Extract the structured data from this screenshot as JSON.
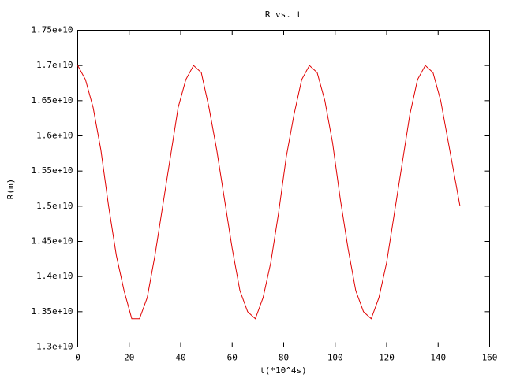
{
  "chart_data": {
    "type": "line",
    "title": "R vs. t",
    "x_label": "t(*10^4s)",
    "y_label": "R(m)",
    "x": [
      0,
      3,
      6,
      9,
      12,
      15,
      18,
      21,
      24,
      27,
      30,
      33,
      36,
      39,
      42,
      45,
      48,
      51,
      54,
      57,
      60,
      63,
      66,
      69,
      72,
      75,
      78,
      81,
      84,
      87,
      90,
      93,
      96,
      99,
      102,
      105,
      108,
      111,
      114,
      117,
      120,
      123,
      126,
      129,
      132,
      135,
      138,
      141,
      144,
      148.5
    ],
    "series": [
      {
        "name": "R",
        "color": "#e00000",
        "values": [
          17000000000.0,
          16800000000.0,
          16400000000.0,
          15800000000.0,
          15000000000.0,
          14300000000.0,
          13800000000.0,
          13400000000.0,
          13400000000.0,
          13700000000.0,
          14300000000.0,
          15000000000.0,
          15700000000.0,
          16400000000.0,
          16800000000.0,
          17000000000.0,
          16900000000.0,
          16400000000.0,
          15800000000.0,
          15100000000.0,
          14400000000.0,
          13800000000.0,
          13500000000.0,
          13400000000.0,
          13700000000.0,
          14200000000.0,
          14900000000.0,
          15700000000.0,
          16300000000.0,
          16800000000.0,
          17000000000.0,
          16900000000.0,
          16500000000.0,
          15900000000.0,
          15100000000.0,
          14400000000.0,
          13800000000.0,
          13500000000.0,
          13400000000.0,
          13700000000.0,
          14200000000.0,
          14900000000.0,
          15600000000.0,
          16300000000.0,
          16800000000.0,
          17000000000.0,
          16900000000.0,
          16500000000.0,
          15900000000.0,
          15000000000.0
        ]
      }
    ],
    "xlim": [
      0,
      160
    ],
    "xticks": [
      0,
      20,
      40,
      60,
      80,
      100,
      120,
      140,
      160
    ],
    "ylim": [
      13000000000.0,
      17500000000.0
    ],
    "yticks": [
      {
        "value": 13000000000.0,
        "label": "1.3e+10"
      },
      {
        "value": 13500000000.0,
        "label": "1.35e+10"
      },
      {
        "value": 14000000000.0,
        "label": "1.4e+10"
      },
      {
        "value": 14500000000.0,
        "label": "1.45e+10"
      },
      {
        "value": 15000000000.0,
        "label": "1.5e+10"
      },
      {
        "value": 15500000000.0,
        "label": "1.55e+10"
      },
      {
        "value": 16000000000.0,
        "label": "1.6e+10"
      },
      {
        "value": 16500000000.0,
        "label": "1.65e+10"
      },
      {
        "value": 17000000000.0,
        "label": "1.7e+10"
      },
      {
        "value": 17500000000.0,
        "label": "1.75e+10"
      }
    ],
    "grid": false
  }
}
